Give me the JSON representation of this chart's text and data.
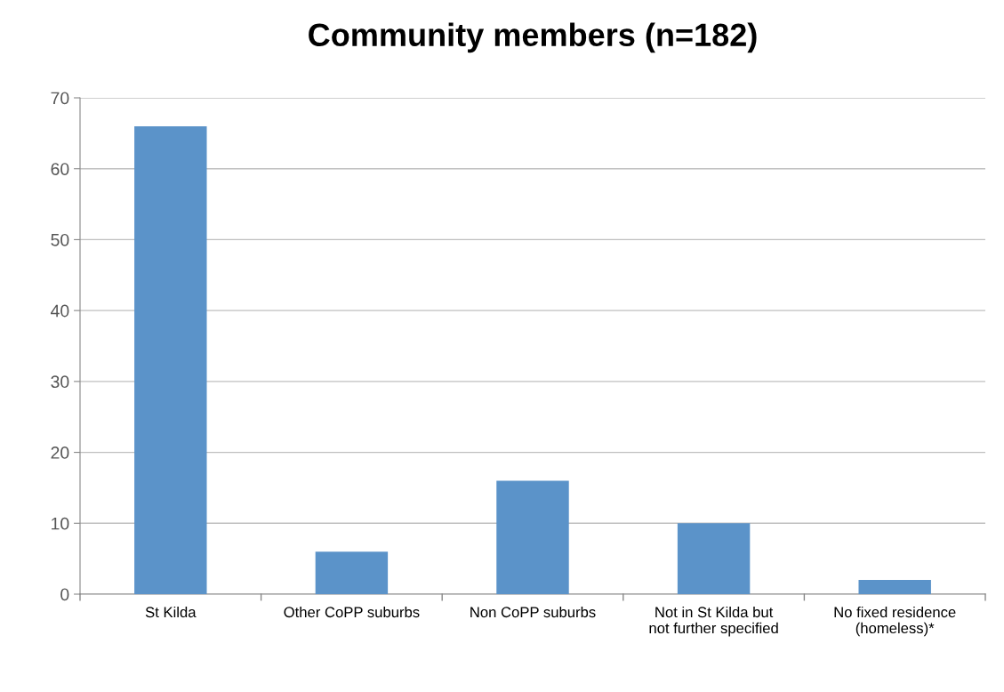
{
  "chart_data": {
    "type": "bar",
    "title": "Community members (n=182)",
    "categories": [
      "St Kilda",
      "Other CoPP suburbs",
      "Non CoPP suburbs",
      "Not in St Kilda but\nnot further specified",
      "No fixed residence\n(homeless)*"
    ],
    "values": [
      66,
      6,
      16,
      10,
      2
    ],
    "color": "#5b93c9",
    "ylim": [
      0,
      70
    ],
    "yticks": [
      0,
      10,
      20,
      30,
      40,
      50,
      60,
      70
    ],
    "grid": "y",
    "legend": false
  }
}
